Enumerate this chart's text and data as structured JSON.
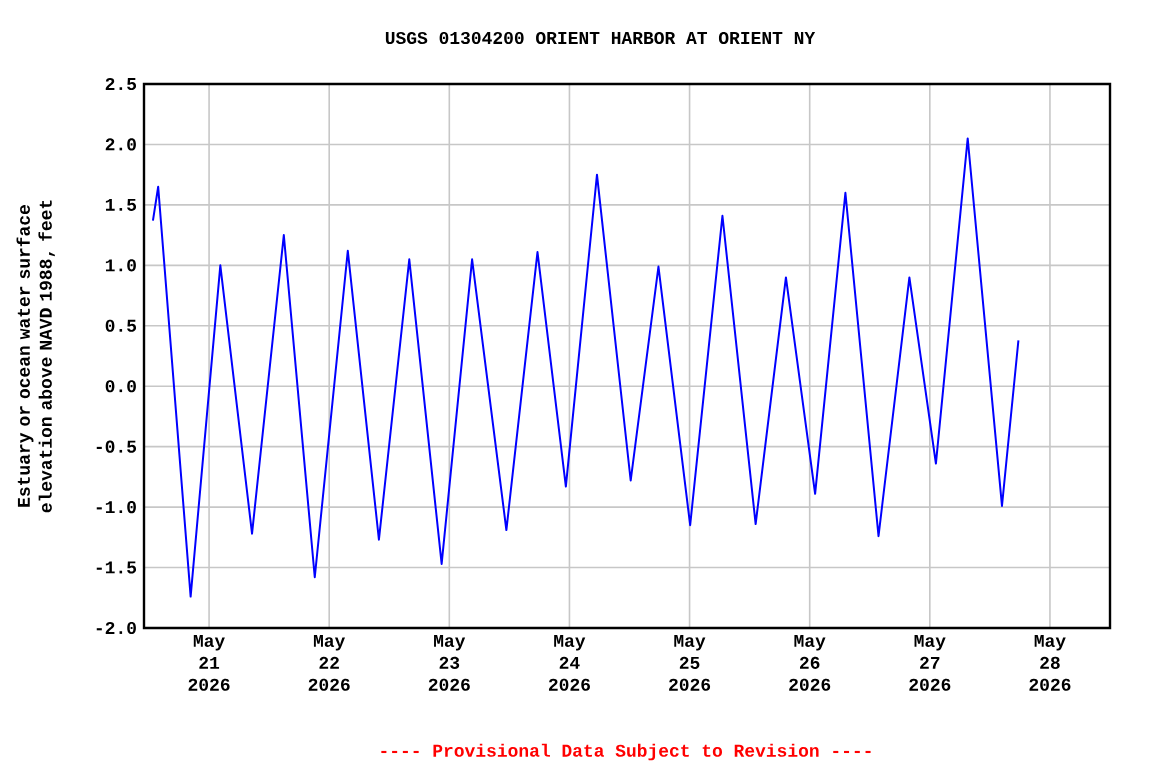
{
  "chart_data": {
    "type": "line",
    "title": "USGS 01304200 ORIENT HARBOR AT ORIENT NY",
    "ylabel": "Estuary or ocean water surface elevation above NAVD 1988, feet",
    "annotations": [
      "---- Provisional Data Subject to Revision ----"
    ],
    "series": [
      {
        "color": "#0000ff",
        "x": [
          "2026-05-20T12:47",
          "2026-05-20T13:50",
          "2026-05-20T20:19",
          "2026-05-21T02:15",
          "2026-05-21T08:35",
          "2026-05-21T14:56",
          "2026-05-21T21:07",
          "2026-05-22T03:43",
          "2026-05-22T09:56",
          "2026-05-22T16:00",
          "2026-05-22T22:28",
          "2026-05-23T04:33",
          "2026-05-23T11:24",
          "2026-05-23T17:37",
          "2026-05-23T23:17",
          "2026-05-24T05:30",
          "2026-05-24T12:14",
          "2026-05-24T17:47",
          "2026-05-25T00:07",
          "2026-05-25T06:34",
          "2026-05-25T13:12",
          "2026-05-25T19:15",
          "2026-05-26T01:05",
          "2026-05-26T07:08",
          "2026-05-26T13:45",
          "2026-05-26T19:55",
          "2026-05-27T01:13",
          "2026-05-27T07:34",
          "2026-05-27T14:25",
          "2026-05-27T17:42"
        ],
        "values": [
          1.37,
          1.65,
          -1.74,
          1.0,
          -1.22,
          1.25,
          -1.58,
          1.12,
          -1.27,
          1.05,
          -1.47,
          1.05,
          -1.19,
          1.11,
          -0.83,
          1.75,
          -0.78,
          0.99,
          -1.15,
          1.41,
          -1.14,
          0.9,
          -0.89,
          1.6,
          -1.24,
          0.9,
          -0.64,
          2.05,
          -0.99,
          0.38
        ]
      }
    ],
    "xlim": [
      "2026-05-20T11:00",
      "2026-05-28T12:00"
    ],
    "xticks": [
      {
        "value": "2026-05-21",
        "label": "May 21 2026"
      },
      {
        "value": "2026-05-22",
        "label": "May 22 2026"
      },
      {
        "value": "2026-05-23",
        "label": "May 23 2026"
      },
      {
        "value": "2026-05-24",
        "label": "May 24 2026"
      },
      {
        "value": "2026-05-25",
        "label": "May 25 2026"
      },
      {
        "value": "2026-05-26",
        "label": "May 26 2026"
      },
      {
        "value": "2026-05-27",
        "label": "May 27 2026"
      },
      {
        "value": "2026-05-28",
        "label": "May 28 2026"
      }
    ],
    "ylim": [
      -2.0,
      2.5
    ],
    "yticks": [
      {
        "value": -2.0,
        "label": "-2.0"
      },
      {
        "value": -1.5,
        "label": "-1.5"
      },
      {
        "value": -1.0,
        "label": "-1.0"
      },
      {
        "value": -0.5,
        "label": "-0.5"
      },
      {
        "value": 0.0,
        "label": "0.0"
      },
      {
        "value": 0.5,
        "label": "0.5"
      },
      {
        "value": 1.0,
        "label": "1.0"
      },
      {
        "value": 1.5,
        "label": "1.5"
      },
      {
        "value": 2.0,
        "label": "2.0"
      },
      {
        "value": 2.5,
        "label": "2.5"
      }
    ],
    "grid": true,
    "marker": "none",
    "line_style": "solid"
  }
}
